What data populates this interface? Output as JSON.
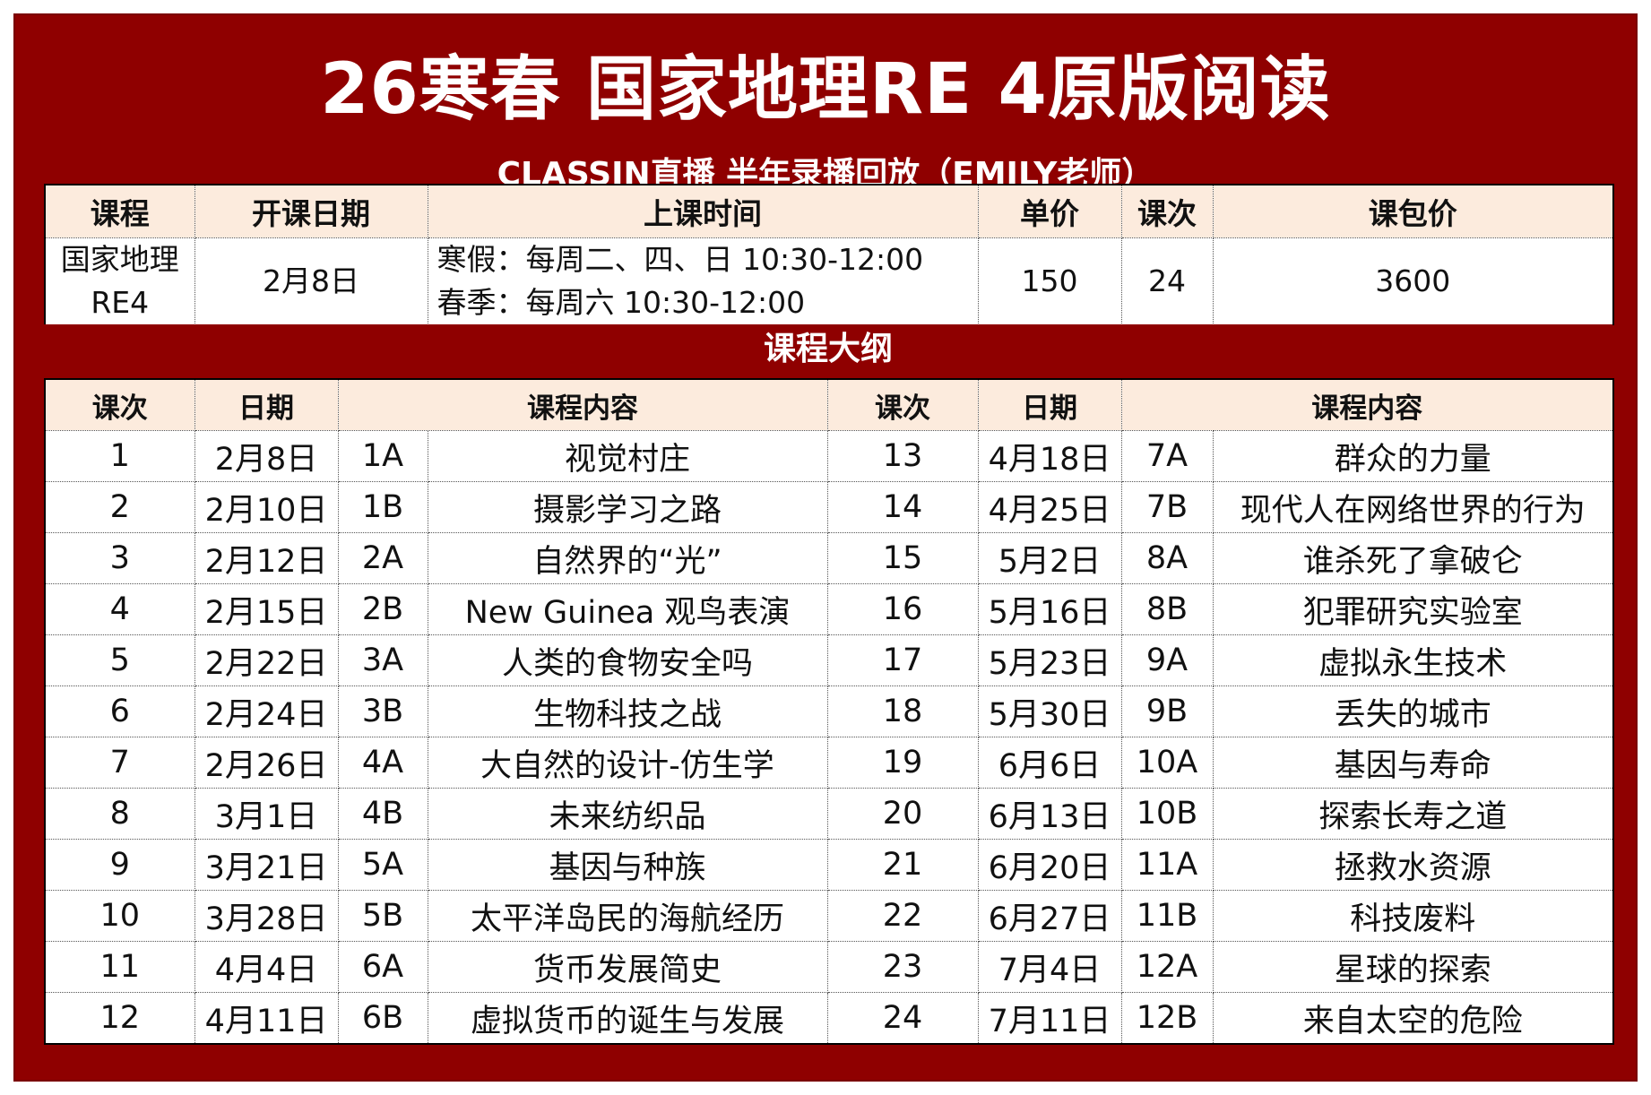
{
  "title": "26寒春 国家地理RE 4原版阅读",
  "subtitle": "CLASSIN直播 半年录播回放（EMILY老师）",
  "info": {
    "headers": [
      "课程",
      "开课日期",
      "上课时间",
      "单价",
      "课次",
      "课包价"
    ],
    "course_line1": "国家地理",
    "course_line2": "RE4",
    "start_date": "2月8日",
    "time_line1": "寒假：每周二、四、日 10:30-12:00",
    "time_line2": "春季：每周六 10:30-12:00",
    "unit_price": "150",
    "sessions": "24",
    "package_price": "3600"
  },
  "outline": {
    "title": "课程大纲",
    "headers": [
      "课次",
      "日期",
      "课程内容",
      "课次",
      "日期",
      "课程内容"
    ],
    "rows": [
      {
        "n1": "1",
        "d1": "2月8日",
        "u1": "1A",
        "c1": "视觉村庄",
        "n2": "13",
        "d2": "4月18日",
        "u2": "7A",
        "c2": "群众的力量"
      },
      {
        "n1": "2",
        "d1": "2月10日",
        "u1": "1B",
        "c1": "摄影学习之路",
        "n2": "14",
        "d2": "4月25日",
        "u2": "7B",
        "c2": "现代人在网络世界的行为"
      },
      {
        "n1": "3",
        "d1": "2月12日",
        "u1": "2A",
        "c1": "自然界的“光”",
        "n2": "15",
        "d2": "5月2日",
        "u2": "8A",
        "c2": "谁杀死了拿破仑"
      },
      {
        "n1": "4",
        "d1": "2月15日",
        "u1": "2B",
        "c1": "New Guinea 观鸟表演",
        "n2": "16",
        "d2": "5月16日",
        "u2": "8B",
        "c2": "犯罪研究实验室"
      },
      {
        "n1": "5",
        "d1": "2月22日",
        "u1": "3A",
        "c1": "人类的食物安全吗",
        "n2": "17",
        "d2": "5月23日",
        "u2": "9A",
        "c2": "虚拟永生技术"
      },
      {
        "n1": "6",
        "d1": "2月24日",
        "u1": "3B",
        "c1": "生物科技之战",
        "n2": "18",
        "d2": "5月30日",
        "u2": "9B",
        "c2": "丢失的城市"
      },
      {
        "n1": "7",
        "d1": "2月26日",
        "u1": "4A",
        "c1": "大自然的设计-仿生学",
        "n2": "19",
        "d2": "6月6日",
        "u2": "10A",
        "c2": "基因与寿命"
      },
      {
        "n1": "8",
        "d1": "3月1日",
        "u1": "4B",
        "c1": "未来纺织品",
        "n2": "20",
        "d2": "6月13日",
        "u2": "10B",
        "c2": "探索长寿之道"
      },
      {
        "n1": "9",
        "d1": "3月21日",
        "u1": "5A",
        "c1": "基因与种族",
        "n2": "21",
        "d2": "6月20日",
        "u2": "11A",
        "c2": "拯救水资源"
      },
      {
        "n1": "10",
        "d1": "3月28日",
        "u1": "5B",
        "c1": "太平洋岛民的海航经历",
        "n2": "22",
        "d2": "6月27日",
        "u2": "11B",
        "c2": "科技废料"
      },
      {
        "n1": "11",
        "d1": "4月4日",
        "u1": "6A",
        "c1": "货币发展简史",
        "n2": "23",
        "d2": "7月4日",
        "u2": "12A",
        "c2": "星球的探索"
      },
      {
        "n1": "12",
        "d1": "4月11日",
        "u1": "6B",
        "c1": "虚拟货币的诞生与发展",
        "n2": "24",
        "d2": "7月11日",
        "u2": "12B",
        "c2": "来自太空的危险"
      }
    ]
  },
  "colors": {
    "frame_red": "#8f0000",
    "header_fill": "#fcebdd",
    "title_text": "#ffffff"
  }
}
